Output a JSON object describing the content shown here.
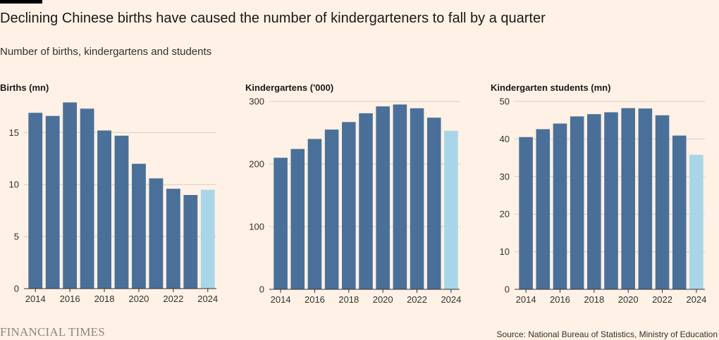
{
  "header": {
    "title": "Declining Chinese births have caused the number of kindergarteners to fall by a quarter",
    "subtitle": "Number of births, kindergartens and students"
  },
  "footer": {
    "brand": "FINANCIAL TIMES",
    "source": "Source: National Bureau of Statistics, Ministry of Education"
  },
  "colors": {
    "bar": "#4a7099",
    "highlight": "#a8d6e8",
    "grid": "#d4cbc2",
    "axis": "#33302e"
  },
  "chart_data": [
    {
      "type": "bar",
      "title": "Births (mn)",
      "x": [
        2014,
        2015,
        2016,
        2017,
        2018,
        2019,
        2020,
        2021,
        2022,
        2023,
        2024
      ],
      "values": [
        16.9,
        16.6,
        17.9,
        17.3,
        15.2,
        14.7,
        12.0,
        10.6,
        9.6,
        9.0,
        9.5
      ],
      "highlight_index": 10,
      "ylim": [
        0,
        18
      ],
      "yticks": [
        0,
        5,
        10,
        15
      ],
      "xticks": [
        2014,
        2016,
        2018,
        2020,
        2022,
        2024
      ],
      "grid": true
    },
    {
      "type": "bar",
      "title": "Kindergartens ('000)",
      "x": [
        2014,
        2015,
        2016,
        2017,
        2018,
        2019,
        2020,
        2021,
        2022,
        2023,
        2024
      ],
      "values": [
        210,
        224,
        240,
        255,
        267,
        281,
        292,
        295,
        289,
        274,
        253
      ],
      "highlight_index": 10,
      "ylim": [
        0,
        300
      ],
      "yticks": [
        0,
        100,
        200,
        300
      ],
      "xticks": [
        2014,
        2016,
        2018,
        2020,
        2022,
        2024
      ],
      "grid": true
    },
    {
      "type": "bar",
      "title": "Kindergarten students (mn)",
      "x": [
        2014,
        2015,
        2016,
        2017,
        2018,
        2019,
        2020,
        2021,
        2022,
        2023,
        2024
      ],
      "values": [
        40.5,
        42.6,
        44.1,
        46.0,
        46.6,
        47.1,
        48.2,
        48.1,
        46.3,
        40.9,
        35.8
      ],
      "highlight_index": 10,
      "ylim": [
        0,
        50
      ],
      "yticks": [
        0,
        10,
        20,
        30,
        40,
        50
      ],
      "xticks": [
        2014,
        2016,
        2018,
        2020,
        2022,
        2024
      ],
      "grid": true
    }
  ]
}
